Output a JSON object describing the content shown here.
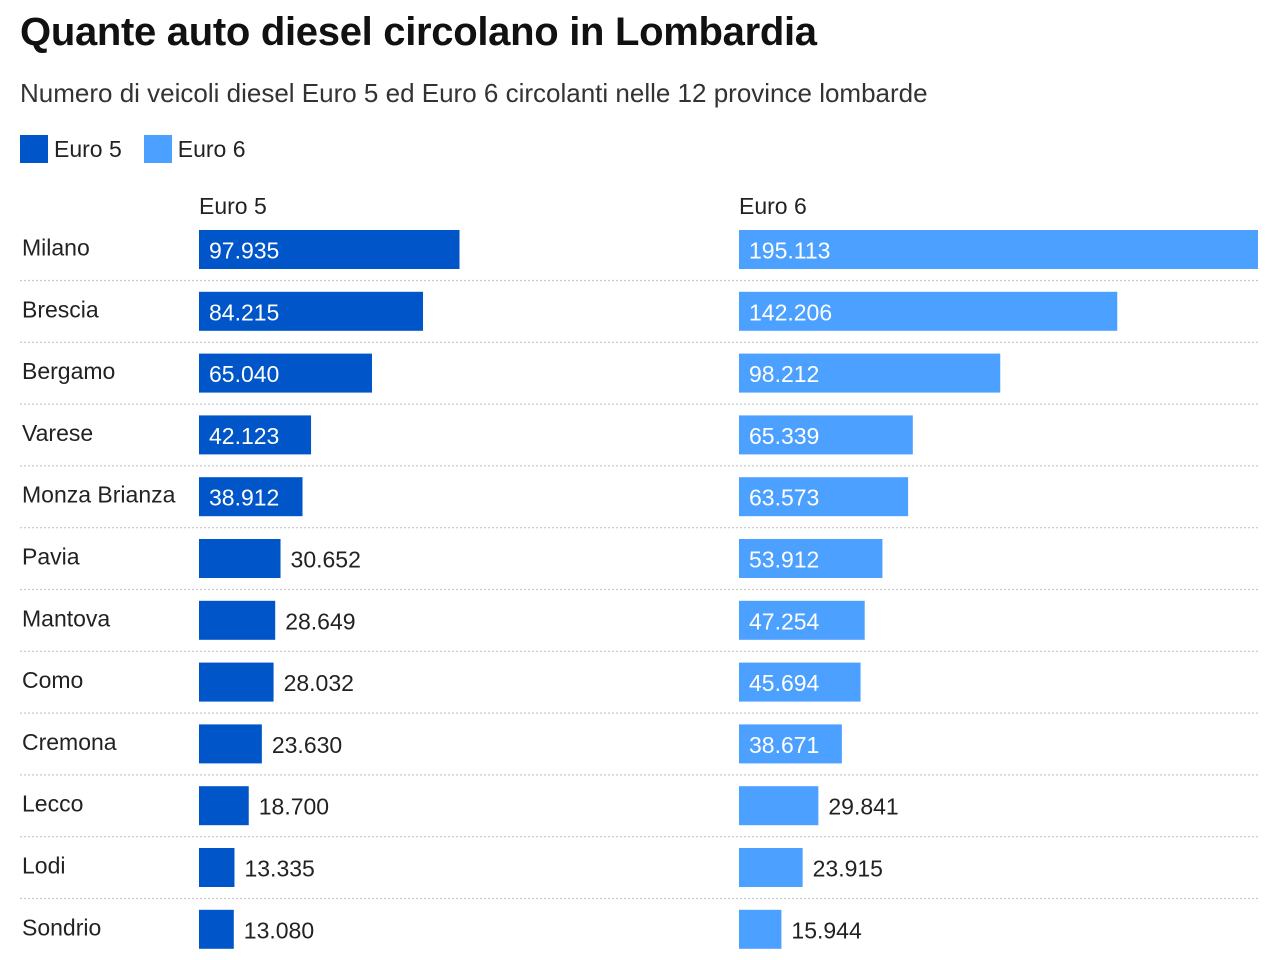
{
  "chart_data": {
    "type": "bar",
    "title": "Quante auto diesel circolano in Lombardia",
    "subtitle": "Numero di veicoli diesel Euro 5 ed Euro 6 circolanti nelle 12 province lombarde",
    "legend_placement": "top-left",
    "categories": [
      "Milano",
      "Brescia",
      "Bergamo",
      "Varese",
      "Monza Brianza",
      "Pavia",
      "Mantova",
      "Como",
      "Cremona",
      "Lecco",
      "Lodi",
      "Sondrio"
    ],
    "series": [
      {
        "name": "Euro 5",
        "color": "#0055c8",
        "values": [
          97935,
          84215,
          65040,
          42123,
          38912,
          30652,
          28649,
          28032,
          23630,
          18700,
          13335,
          13080
        ],
        "labels": [
          "97.935",
          "84.215",
          "65.040",
          "42.123",
          "38.912",
          "30.652",
          "28.649",
          "28.032",
          "23.630",
          "18.700",
          "13.335",
          "13.080"
        ]
      },
      {
        "name": "Euro 6",
        "color": "#4ca0ff",
        "values": [
          195113,
          142206,
          98212,
          65339,
          63573,
          53912,
          47254,
          45694,
          38671,
          29841,
          23915,
          15944
        ],
        "labels": [
          "195.113",
          "142.206",
          "98.212",
          "65.339",
          "63.573",
          "53.912",
          "47.254",
          "45.694",
          "38.671",
          "29.841",
          "23.915",
          "15.944"
        ]
      }
    ]
  }
}
